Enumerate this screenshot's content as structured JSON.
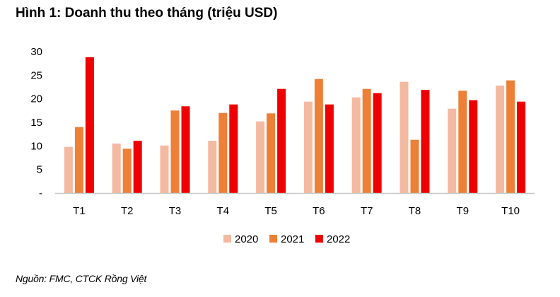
{
  "title": "Hình 1: Doanh thu theo tháng (triệu USD)",
  "source": "Nguồn: FMC, CTCK Rồng Việt",
  "chart_data": {
    "type": "bar",
    "categories": [
      "T1",
      "T2",
      "T3",
      "T4",
      "T5",
      "T6",
      "T7",
      "T8",
      "T9",
      "T10"
    ],
    "series": [
      {
        "name": "2020",
        "color": "#F4B9A1",
        "values": [
          9.8,
          10.5,
          10.1,
          11.1,
          15.2,
          19.4,
          20.3,
          23.6,
          17.9,
          22.8
        ]
      },
      {
        "name": "2021",
        "color": "#EE7F37",
        "values": [
          14.0,
          9.4,
          17.5,
          17.0,
          16.9,
          24.2,
          22.1,
          11.3,
          21.7,
          23.9
        ]
      },
      {
        "name": "2022",
        "color": "#EE0000",
        "values": [
          28.8,
          11.1,
          18.4,
          18.8,
          22.1,
          18.8,
          21.2,
          21.9,
          19.7,
          19.4
        ]
      }
    ],
    "ylim": [
      0,
      30
    ],
    "yticks": [
      "-",
      "5",
      "10",
      "15",
      "20",
      "25",
      "30"
    ],
    "grid": false,
    "legend_position": "bottom"
  }
}
